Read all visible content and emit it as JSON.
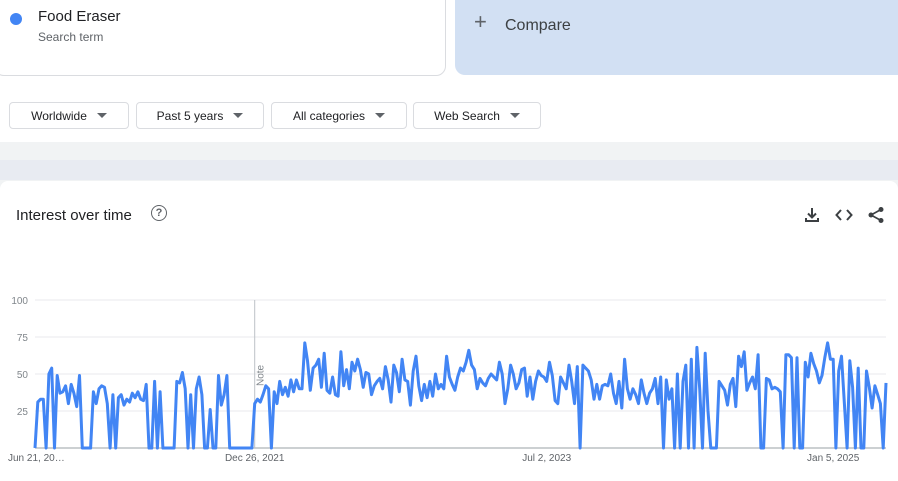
{
  "search_term": {
    "name": "Food Eraser",
    "subtitle": "Search term",
    "color": "#4285f4"
  },
  "compare": {
    "label": "Compare",
    "icon": "plus-icon"
  },
  "filters": {
    "location": "Worldwide",
    "time_range": "Past 5 years",
    "category": "All categories",
    "property": "Web Search"
  },
  "interest_card": {
    "title": "Interest over time",
    "help_icon": "help-circle-icon",
    "toolbar_icons": [
      "download-icon",
      "embed-code-icon",
      "share-icon"
    ],
    "note_label": "Note"
  },
  "chart_data": {
    "type": "line",
    "title": "Interest over time",
    "xlabel": "",
    "ylabel": "",
    "ylim": [
      0,
      100
    ],
    "yticks": [
      25,
      50,
      75,
      100
    ],
    "x_tick_labels": [
      "Jun 21, 20…",
      "Dec 26, 2021",
      "Jul 2, 2023",
      "Jan 5, 2025"
    ],
    "x_tick_indices": [
      0,
      79,
      184,
      287
    ],
    "note_index": 79,
    "grid": true,
    "color": "#4285f4",
    "x_range": "Jun 21, 2020 – Jun 2025 (weekly)",
    "series": [
      {
        "values": [
          0,
          31,
          33,
          33,
          0,
          50,
          54,
          0,
          49,
          37,
          38,
          42,
          30,
          43,
          37,
          28,
          49,
          0,
          0,
          0,
          0,
          38,
          30,
          40,
          42,
          41,
          30,
          0,
          36,
          0,
          34,
          36,
          29,
          33,
          31,
          37,
          34,
          38,
          33,
          32,
          43,
          0,
          0,
          45,
          0,
          38,
          0,
          0,
          0,
          0,
          0,
          45,
          44,
          51,
          40,
          0,
          36,
          0,
          40,
          48,
          36,
          0,
          0,
          26,
          0,
          0,
          49,
          29,
          36,
          49,
          0,
          0,
          0,
          0,
          0,
          0,
          0,
          0,
          0,
          30,
          33,
          31,
          36,
          42,
          40,
          0,
          38,
          30,
          45,
          36,
          41,
          35,
          46,
          38,
          46,
          40,
          40,
          71,
          59,
          39,
          54,
          56,
          60,
          41,
          64,
          39,
          37,
          48,
          36,
          35,
          65,
          42,
          53,
          40,
          58,
          52,
          60,
          53,
          41,
          51,
          50,
          36,
          42,
          45,
          47,
          40,
          55,
          46,
          31,
          56,
          51,
          38,
          60,
          46,
          45,
          29,
          52,
          62,
          42,
          32,
          43,
          34,
          45,
          35,
          50,
          40,
          43,
          40,
          62,
          48,
          43,
          39,
          48,
          54,
          52,
          58,
          66,
          56,
          53,
          40,
          47,
          44,
          42,
          47,
          50,
          48,
          46,
          58,
          50,
          30,
          40,
          56,
          50,
          40,
          44,
          53,
          54,
          35,
          48,
          33,
          45,
          52,
          49,
          48,
          45,
          58,
          49,
          32,
          30,
          48,
          44,
          40,
          56,
          45,
          30,
          55,
          0,
          56,
          54,
          52,
          46,
          33,
          43,
          33,
          42,
          43,
          42,
          50,
          37,
          30,
          45,
          27,
          60,
          40,
          33,
          40,
          36,
          30,
          46,
          37,
          30,
          37,
          40,
          47,
          30,
          48,
          0,
          46,
          33,
          40,
          0,
          50,
          0,
          45,
          56,
          0,
          60,
          0,
          68,
          40,
          0,
          64,
          25,
          0,
          0,
          0,
          45,
          42,
          39,
          29,
          43,
          47,
          28,
          62,
          55,
          65,
          39,
          44,
          48,
          40,
          63,
          0,
          0,
          47,
          46,
          40,
          41,
          40,
          38,
          0,
          63,
          63,
          61,
          0,
          61,
          0,
          0,
          58,
          48,
          64,
          57,
          52,
          44,
          49,
          61,
          71,
          60,
          60,
          0,
          52,
          62,
          31,
          0,
          59,
          41,
          0,
          54,
          0,
          0,
          52,
          41,
          27,
          42,
          36,
          30,
          0,
          44
        ]
      }
    ]
  }
}
